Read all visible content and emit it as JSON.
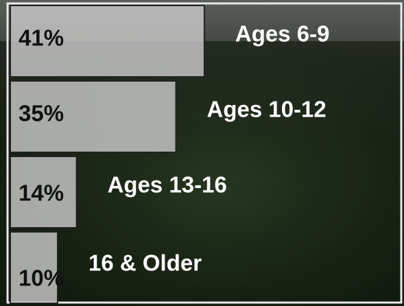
{
  "chart_data": {
    "type": "bar",
    "orientation": "horizontal",
    "categories": [
      "Ages 6-9",
      "Ages 10-12",
      "Ages 13-16",
      "16 & Older"
    ],
    "values": [
      41,
      35,
      14,
      10
    ],
    "value_labels": [
      "41%",
      "35%",
      "14%",
      "10%"
    ],
    "color": "#c9c9c9"
  }
}
